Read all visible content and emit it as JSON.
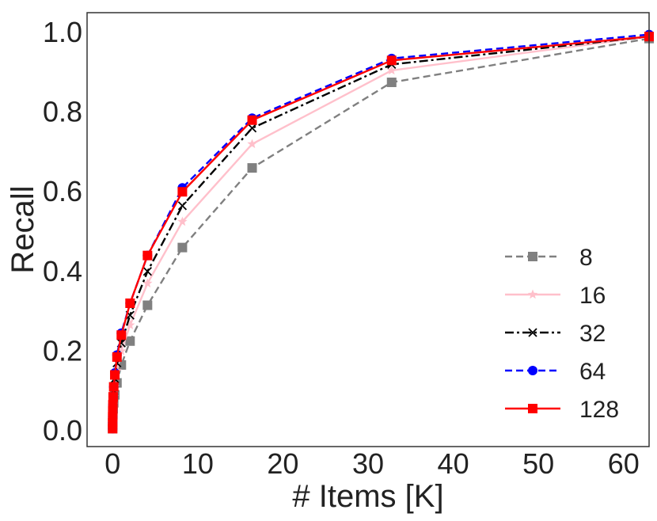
{
  "chart_data": {
    "type": "line",
    "title": "",
    "xlabel": "# Items [K]",
    "ylabel": "Recall",
    "xlim": [
      -3,
      63
    ],
    "ylim": [
      -0.04,
      1.05
    ],
    "xticks": [
      0,
      10,
      20,
      30,
      40,
      50,
      60
    ],
    "yticks": [
      0.0,
      0.2,
      0.4,
      0.6,
      0.8,
      1.0
    ],
    "xtick_labels": [
      "0",
      "10",
      "20",
      "30",
      "40",
      "50",
      "60"
    ],
    "ytick_labels": [
      "0.0",
      "0.2",
      "0.4",
      "0.6",
      "0.8",
      "1.0"
    ],
    "grid": false,
    "legend_position": "bottom-right",
    "x": [
      0.0,
      0.004,
      0.008,
      0.016,
      0.032,
      0.064,
      0.128,
      0.256,
      0.512,
      1.024,
      2.048,
      4.096,
      8.192,
      16.384,
      32.768,
      63.0
    ],
    "series": [
      {
        "name": "8",
        "color": "#808080",
        "line": "dashed",
        "marker": "square",
        "values": [
          0.005,
          0.01,
          0.02,
          0.03,
          0.04,
          0.055,
          0.07,
          0.09,
          0.12,
          0.165,
          0.225,
          0.315,
          0.46,
          0.66,
          0.875,
          0.985
        ]
      },
      {
        "name": "16",
        "color": "#ffc0cb",
        "line": "solid",
        "marker": "star",
        "values": [
          0.005,
          0.015,
          0.025,
          0.035,
          0.05,
          0.065,
          0.085,
          0.11,
          0.15,
          0.2,
          0.265,
          0.37,
          0.525,
          0.72,
          0.905,
          0.99
        ]
      },
      {
        "name": "32",
        "color": "#000000",
        "line": "dashdot",
        "marker": "x",
        "values": [
          0.005,
          0.015,
          0.03,
          0.045,
          0.06,
          0.08,
          0.1,
          0.13,
          0.17,
          0.22,
          0.29,
          0.4,
          0.565,
          0.76,
          0.92,
          0.99
        ]
      },
      {
        "name": "64",
        "color": "#0000ff",
        "line": "dashed",
        "marker": "circle",
        "values": [
          0.005,
          0.02,
          0.035,
          0.05,
          0.065,
          0.085,
          0.11,
          0.145,
          0.19,
          0.245,
          0.32,
          0.44,
          0.61,
          0.785,
          0.935,
          0.995
        ]
      },
      {
        "name": "128",
        "color": "#ff0000",
        "line": "solid",
        "marker": "square",
        "values": [
          0.005,
          0.02,
          0.035,
          0.05,
          0.065,
          0.085,
          0.11,
          0.14,
          0.185,
          0.24,
          0.32,
          0.44,
          0.6,
          0.78,
          0.93,
          0.99
        ]
      }
    ]
  }
}
